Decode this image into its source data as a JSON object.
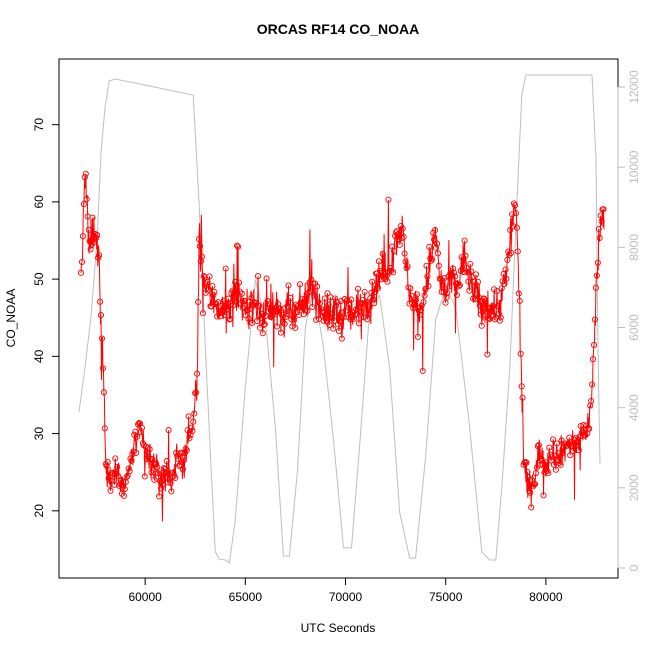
{
  "chart_data": {
    "type": "line",
    "title": "ORCAS RF14 CO_NOAA",
    "xlabel": "UTC Seconds",
    "ylabel": "CO_NOAA",
    "xlim": [
      55700,
      83600
    ],
    "ylim": [
      11.3,
      78.5
    ],
    "y2lim": [
      -250,
      12700
    ],
    "xticks": [
      60000,
      65000,
      70000,
      75000,
      80000
    ],
    "yticks": [
      20,
      30,
      40,
      50,
      60,
      70
    ],
    "y2ticks": [
      0,
      2000,
      4000,
      6000,
      8000,
      10000,
      12000
    ],
    "grid": false,
    "colors": {
      "co": "#ff0000",
      "altitude": "#bebebe"
    },
    "series": [
      {
        "axis": "left",
        "marker": "open-circle",
        "points": [
          [
            56800,
            50
          ],
          [
            56900,
            56
          ],
          [
            57000,
            64
          ],
          [
            57100,
            59
          ],
          [
            57200,
            53
          ],
          [
            57300,
            56
          ],
          [
            57500,
            55
          ],
          [
            57700,
            53
          ],
          [
            57800,
            44
          ],
          [
            57900,
            40
          ],
          [
            58050,
            25
          ],
          [
            58300,
            24
          ],
          [
            58600,
            26
          ],
          [
            58900,
            23
          ],
          [
            59200,
            25
          ],
          [
            59500,
            29
          ],
          [
            59800,
            30
          ],
          [
            60100,
            27
          ],
          [
            60400,
            26
          ],
          [
            60700,
            24
          ],
          [
            61000,
            25
          ],
          [
            61300,
            24
          ],
          [
            61600,
            27
          ],
          [
            61900,
            26
          ],
          [
            62200,
            30
          ],
          [
            62400,
            31
          ],
          [
            62600,
            38
          ],
          [
            62700,
            55
          ],
          [
            62900,
            50
          ],
          [
            63200,
            48
          ],
          [
            63500,
            47
          ],
          [
            63800,
            46
          ],
          [
            64100,
            46
          ],
          [
            64400,
            47
          ],
          [
            64700,
            48
          ],
          [
            65000,
            46
          ],
          [
            65300,
            47
          ],
          [
            65600,
            46
          ],
          [
            65900,
            45
          ],
          [
            66200,
            47
          ],
          [
            66500,
            46
          ],
          [
            66800,
            45
          ],
          [
            67100,
            46
          ],
          [
            67400,
            45
          ],
          [
            67700,
            46
          ],
          [
            68000,
            47
          ],
          [
            68300,
            50
          ],
          [
            68600,
            47
          ],
          [
            68900,
            46
          ],
          [
            69200,
            45
          ],
          [
            69500,
            46
          ],
          [
            69800,
            45
          ],
          [
            70100,
            46
          ],
          [
            70400,
            45
          ],
          [
            70700,
            47
          ],
          [
            71000,
            47
          ],
          [
            71300,
            48
          ],
          [
            71600,
            50
          ],
          [
            71900,
            51
          ],
          [
            72200,
            52
          ],
          [
            72500,
            55
          ],
          [
            72800,
            57
          ],
          [
            73000,
            52
          ],
          [
            73300,
            47
          ],
          [
            73600,
            46
          ],
          [
            73900,
            47
          ],
          [
            74200,
            52
          ],
          [
            74500,
            56
          ],
          [
            74700,
            50
          ],
          [
            75000,
            48
          ],
          [
            75300,
            50
          ],
          [
            75600,
            49
          ],
          [
            75900,
            53
          ],
          [
            76200,
            50
          ],
          [
            76500,
            48
          ],
          [
            76800,
            46
          ],
          [
            77100,
            47
          ],
          [
            77400,
            46
          ],
          [
            77700,
            47
          ],
          [
            78000,
            50
          ],
          [
            78300,
            57
          ],
          [
            78500,
            60
          ],
          [
            78700,
            45
          ],
          [
            78900,
            26
          ],
          [
            79100,
            23
          ],
          [
            79400,
            24
          ],
          [
            79700,
            28
          ],
          [
            80000,
            26
          ],
          [
            80300,
            28
          ],
          [
            80600,
            27
          ],
          [
            80900,
            28
          ],
          [
            81200,
            29
          ],
          [
            81500,
            28
          ],
          [
            81800,
            30
          ],
          [
            82100,
            31
          ],
          [
            82300,
            35
          ],
          [
            82500,
            48
          ],
          [
            82700,
            57
          ],
          [
            82900,
            58
          ]
        ]
      },
      {
        "axis": "right",
        "points": [
          [
            56700,
            3900
          ],
          [
            57000,
            5000
          ],
          [
            57300,
            6300
          ],
          [
            57600,
            8200
          ],
          [
            57800,
            10400
          ],
          [
            58000,
            11500
          ],
          [
            58200,
            12150
          ],
          [
            58500,
            12200
          ],
          [
            60000,
            12050
          ],
          [
            62400,
            11800
          ],
          [
            62700,
            9000
          ],
          [
            63000,
            5500
          ],
          [
            63300,
            2400
          ],
          [
            63500,
            400
          ],
          [
            63700,
            220
          ],
          [
            64000,
            200
          ],
          [
            64200,
            120
          ],
          [
            64500,
            1200
          ],
          [
            65000,
            4500
          ],
          [
            65500,
            7200
          ],
          [
            66000,
            6200
          ],
          [
            66500,
            3500
          ],
          [
            66900,
            300
          ],
          [
            67200,
            300
          ],
          [
            67600,
            2400
          ],
          [
            68000,
            6000
          ],
          [
            68400,
            7000
          ],
          [
            68900,
            5500
          ],
          [
            69400,
            3200
          ],
          [
            69900,
            500
          ],
          [
            70300,
            500
          ],
          [
            70700,
            3000
          ],
          [
            71200,
            6400
          ],
          [
            71700,
            6800
          ],
          [
            72200,
            5000
          ],
          [
            72700,
            1400
          ],
          [
            73200,
            250
          ],
          [
            73500,
            250
          ],
          [
            74000,
            2800
          ],
          [
            74500,
            6200
          ],
          [
            75000,
            7000
          ],
          [
            75500,
            6500
          ],
          [
            76200,
            3500
          ],
          [
            76800,
            400
          ],
          [
            77200,
            200
          ],
          [
            77500,
            200
          ],
          [
            77800,
            2000
          ],
          [
            78200,
            5000
          ],
          [
            78500,
            8500
          ],
          [
            78800,
            11800
          ],
          [
            79000,
            12300
          ],
          [
            79300,
            12300
          ],
          [
            82300,
            12300
          ],
          [
            82500,
            10200
          ],
          [
            82600,
            5500
          ],
          [
            82700,
            2600
          ]
        ]
      }
    ]
  }
}
